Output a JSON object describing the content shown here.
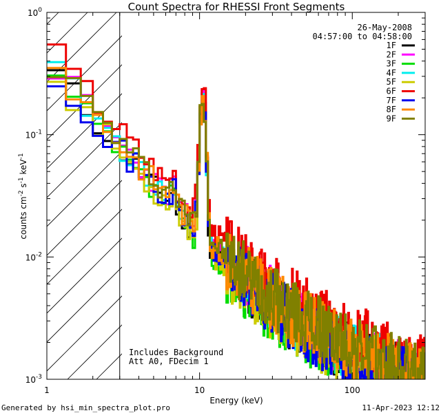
{
  "chart_data": {
    "type": "line",
    "title": "Count Spectra for RHESSI Front Segments",
    "xlabel": "Energy (keV)",
    "ylabel_base": "counts cm",
    "ylabel_exp1": "-2",
    "ylabel_mid": " s",
    "ylabel_exp2": "-1",
    "ylabel_end": " keV",
    "ylabel_exp3": "-1",
    "xscale": "log",
    "yscale": "log",
    "xlim": [
      1,
      300
    ],
    "ylim": [
      0.001,
      1
    ],
    "x_ticks": [
      {
        "value": 1,
        "label": "1"
      },
      {
        "value": 10,
        "label": "10"
      },
      {
        "value": 100,
        "label": "100"
      }
    ],
    "y_ticks": [
      {
        "value": 0.001,
        "base": "10",
        "exp": "-3"
      },
      {
        "value": 0.01,
        "base": "10",
        "exp": "-2"
      },
      {
        "value": 0.1,
        "base": "10",
        "exp": "-1"
      },
      {
        "value": 1,
        "base": "10",
        "exp": "0"
      }
    ],
    "hatched_region": {
      "x_from": 1,
      "x_to": 3
    },
    "annotations": {
      "date": "26-May-2008",
      "time_range": "04:57:00 to 04:58:00",
      "background_note": "Includes Background",
      "attenuator_note": "Att A0, FDecim 1"
    },
    "series": [
      {
        "name": "1F",
        "color": "#000000",
        "scale": 0.9,
        "seed": 11
      },
      {
        "name": "2F",
        "color": "#ff00ff",
        "scale": 1.0,
        "seed": 23
      },
      {
        "name": "3F",
        "color": "#00dd00",
        "scale": 0.8,
        "seed": 37
      },
      {
        "name": "4F",
        "color": "#00eeee",
        "scale": 0.95,
        "seed": 41
      },
      {
        "name": "5F",
        "color": "#cccc00",
        "scale": 0.85,
        "seed": 53
      },
      {
        "name": "6F",
        "color": "#ee0000",
        "scale": 1.3,
        "seed": 67
      },
      {
        "name": "7F",
        "color": "#0000ee",
        "scale": 0.9,
        "seed": 71
      },
      {
        "name": "8F",
        "color": "#ff8800",
        "scale": 1.0,
        "seed": 83
      },
      {
        "name": "9F",
        "color": "#808000",
        "scale": 1.05,
        "seed": 97
      }
    ]
  },
  "footer": {
    "left": "Generated by hsi_min_spectra_plot.pro",
    "right": "11-Apr-2023 12:12"
  }
}
